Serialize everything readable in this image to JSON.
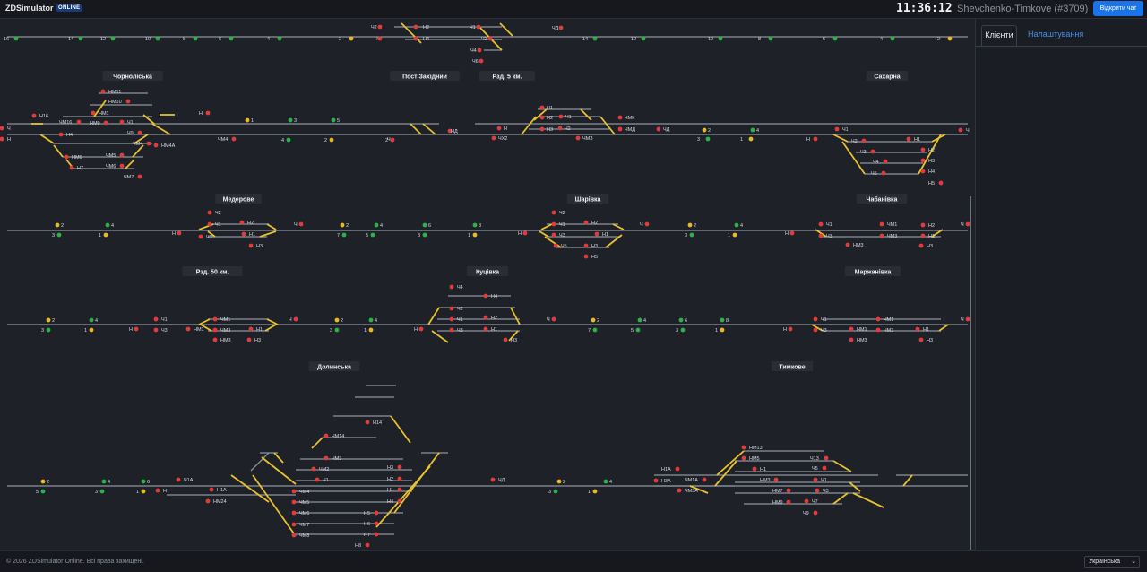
{
  "header": {
    "app_name": "ZDSimulator",
    "badge": "ONLINE",
    "clock": "11:36:12",
    "session": "Shevchenko-Timkove (#3709)",
    "chat_button": "Відкрити чат"
  },
  "side_panel": {
    "tabs": [
      {
        "label": "Клієнти",
        "active": true
      },
      {
        "label": "Налаштування",
        "active": false
      }
    ]
  },
  "footer": {
    "copyright": "© 2026 ZDSimulator Online. Всі права захищені.",
    "language": "Українська"
  },
  "stations": [
    {
      "name": "Чорноліська",
      "labels": [
        "Н16",
        "ЧМ16",
        "НМ11",
        "НМ10",
        "НМ1",
        "НМ9",
        "Ч1",
        "Ч9",
        "Ч",
        "Н",
        "Н4",
        "ЧМ4",
        "НМ4А",
        "ЧМ5",
        "НМ6",
        "ЧМ6",
        "Н7",
        "ЧМ7",
        "Н",
        "ЧМ4"
      ]
    },
    {
      "name": "Пост Західний",
      "labels": [
        "Ч",
        "НД"
      ]
    },
    {
      "name": "Рзд. 5 км.",
      "labels": [
        "Н1",
        "Ч1",
        "ЧМК",
        "Н2",
        "Ч2",
        "ЧМД",
        "Н",
        "Н3",
        "ЧМЗ",
        "ЧД",
        "ЧХ2"
      ]
    },
    {
      "name": "Сахарна",
      "labels": [
        "Н",
        "Ч1",
        "Ч2",
        "Н1",
        "Ч3",
        "Н2",
        "Ч4",
        "Н3",
        "Ч5",
        "Н4",
        "Н5",
        "Ч"
      ]
    },
    {
      "name": "Медерове",
      "labels": [
        "Ч2",
        "Ч1",
        "Н2",
        "Ч3",
        "Н1",
        "Н3",
        "Н",
        "Ч"
      ]
    },
    {
      "name": "Шарівка",
      "labels": [
        "Ч2",
        "Ч1",
        "Н2",
        "Ч3",
        "Н1",
        "Ч5",
        "Н3",
        "Н5",
        "Н",
        "Ч"
      ]
    },
    {
      "name": "Чабанівка",
      "labels": [
        "Ч1",
        "ЧМ1",
        "Ч3",
        "НМ3",
        "ЧМ3",
        "Н2",
        "Н1",
        "Н3",
        "Н",
        "Ч"
      ]
    },
    {
      "name": "Рзд. 50 км.",
      "labels": [
        "Ч1",
        "ЧМ1",
        "Ч3",
        "НМ1",
        "ЧМ3",
        "Н1",
        "НМ3",
        "Н3",
        "Н",
        "Ч"
      ]
    },
    {
      "name": "Куцівка",
      "labels": [
        "Ч4",
        "Н4",
        "Ч2",
        "Ч1",
        "Н2",
        "Ч3",
        "Н1",
        "Н3",
        "Н",
        "Ч"
      ]
    },
    {
      "name": "Маржанівка",
      "labels": [
        "Ч1",
        "ЧМ1",
        "Ч3",
        "НМ1",
        "ЧМ3",
        "Н1",
        "НМ3",
        "Н3",
        "Н",
        "Ч"
      ]
    },
    {
      "name": "Долинська",
      "labels": [
        "Н14",
        "ЧМ14",
        "ЧМ3",
        "ЧМ2",
        "Ч1",
        "ЧМ4",
        "ЧМ5",
        "ЧМ6",
        "ЧМ7",
        "ЧМ8",
        "Н3",
        "Н2",
        "Н1",
        "Н4",
        "Н5",
        "Н6",
        "Н7",
        "Н8",
        "Н1А",
        "НМ24",
        "Ч1А",
        "Н",
        "ЧД"
      ]
    },
    {
      "name": "Тимкове",
      "labels": [
        "НМ13",
        "Н1А",
        "НМ5",
        "Ч13",
        "Н3А",
        "ЧМ1А",
        "Н1",
        "Ч5",
        "ЧМ3А",
        "НМ3",
        "Ч1",
        "НМ7",
        "Ч3",
        "НМ9",
        "Ч7",
        "Ч9"
      ]
    }
  ],
  "track_numbers": {
    "row0_left": [
      "16",
      "14",
      "12",
      "10",
      "8",
      "6",
      "4",
      "2"
    ],
    "row0_right": [
      "14",
      "12",
      "10",
      "8",
      "6",
      "4",
      "2"
    ],
    "row0_labels": [
      "Ч2",
      "Н2",
      "Ч1",
      "ЧД",
      "Ч",
      "Н4",
      "Ч2",
      "Ч4",
      "Ч6"
    ],
    "row1": [
      "1",
      "3",
      "5",
      "4",
      "2",
      "2",
      "4",
      "1",
      "3"
    ],
    "row2": [
      "2",
      "4",
      "3",
      "1",
      "2",
      "4",
      "6",
      "8",
      "7",
      "5",
      "3",
      "1",
      "2",
      "4",
      "3",
      "1"
    ],
    "row3": [
      "2",
      "4",
      "3",
      "1",
      "2",
      "4",
      "3",
      "1",
      "2",
      "4",
      "6",
      "8",
      "7",
      "5",
      "3",
      "1"
    ],
    "row4": [
      "2",
      "4",
      "6",
      "5",
      "3",
      "1",
      "2",
      "4",
      "3",
      "1"
    ]
  }
}
